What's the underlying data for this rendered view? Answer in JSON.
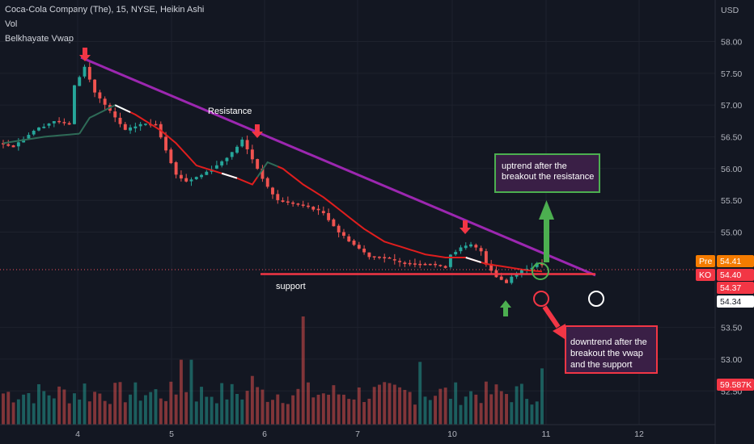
{
  "header": {
    "title": "Coca-Cola Company (The), 15, NYSE, Heikin Ashi",
    "indicator1": "Vol",
    "indicator2": "Belkhayate Vwap"
  },
  "axis": {
    "currency": "USD",
    "y_ticks": [
      "58.00",
      "57.50",
      "57.00",
      "56.50",
      "56.00",
      "55.50",
      "55.00",
      "53.50",
      "53.00",
      "52.50"
    ],
    "x_ticks": [
      "4",
      "5",
      "6",
      "7",
      "10",
      "11",
      "12"
    ]
  },
  "badges": {
    "pre_label": "Pre",
    "pre_value": "54.41",
    "ko_label": "KO",
    "ko_value": "54.40",
    "red_value": "54.37",
    "white_value": "54.34",
    "volume_value": "59.587K"
  },
  "annotations": {
    "resistance": "Resistance",
    "support": "support",
    "uptrend_line1": "uptrend after the",
    "uptrend_line2": "breakout the resistance",
    "downtrend_line1": "downtrend after the",
    "downtrend_line2": "breakout the vwap",
    "downtrend_line3": "and the support"
  },
  "colors": {
    "background": "#131722",
    "candle_up": "#26a69a",
    "candle_down": "#ef5350",
    "vwap": "#e01e1e",
    "resistance_line": "#9c27b0",
    "support_line": "#f23645",
    "arrow_red": "#f23645",
    "arrow_green": "#4caf50"
  },
  "chart_data": {
    "type": "candlestick",
    "x_ticks": [
      "4",
      "5",
      "6",
      "7",
      "10",
      "11",
      "12"
    ],
    "ylim": [
      52.3,
      58.4
    ],
    "price_anchors": [
      [
        0,
        56.4
      ],
      [
        3,
        56.35
      ],
      [
        7,
        56.6
      ],
      [
        11,
        56.75
      ],
      [
        14,
        56.7
      ],
      [
        15,
        57.3
      ],
      [
        17,
        57.6
      ],
      [
        19,
        57.2
      ],
      [
        22,
        56.9
      ],
      [
        25,
        56.6
      ],
      [
        28,
        56.7
      ],
      [
        31,
        56.7
      ],
      [
        33,
        56.3
      ],
      [
        35,
        55.9
      ],
      [
        37,
        55.8
      ],
      [
        40,
        55.9
      ],
      [
        43,
        56.05
      ],
      [
        46,
        56.25
      ],
      [
        48,
        56.45
      ],
      [
        49,
        56.3
      ],
      [
        51,
        56.0
      ],
      [
        53,
        55.7
      ],
      [
        55,
        55.5
      ],
      [
        58,
        55.45
      ],
      [
        61,
        55.4
      ],
      [
        64,
        55.3
      ],
      [
        67,
        55.0
      ],
      [
        70,
        54.8
      ],
      [
        73,
        54.62
      ],
      [
        76,
        54.6
      ],
      [
        79,
        54.52
      ],
      [
        82,
        54.5
      ],
      [
        85,
        54.5
      ],
      [
        88,
        54.45
      ],
      [
        89,
        54.65
      ],
      [
        91,
        54.75
      ],
      [
        93,
        54.8
      ],
      [
        95,
        54.7
      ],
      [
        96,
        54.5
      ],
      [
        98,
        54.3
      ],
      [
        100,
        54.2
      ],
      [
        101,
        54.3
      ],
      [
        103,
        54.4
      ],
      [
        105,
        54.45
      ],
      [
        106,
        54.5
      ]
    ],
    "vwap": [
      [
        0,
        56.4
      ],
      [
        8,
        56.5
      ],
      [
        15,
        56.55
      ],
      [
        17,
        56.8
      ],
      [
        22,
        57.0
      ],
      [
        26,
        56.85
      ],
      [
        31,
        56.6
      ],
      [
        34,
        56.4
      ],
      [
        38,
        56.05
      ],
      [
        42,
        55.95
      ],
      [
        46,
        55.85
      ],
      [
        49,
        55.75
      ],
      [
        52,
        56.1
      ],
      [
        55,
        56.0
      ],
      [
        59,
        55.75
      ],
      [
        63,
        55.55
      ],
      [
        67,
        55.3
      ],
      [
        71,
        55.05
      ],
      [
        75,
        54.85
      ],
      [
        79,
        54.75
      ],
      [
        83,
        54.65
      ],
      [
        87,
        54.6
      ],
      [
        91,
        54.6
      ],
      [
        95,
        54.5
      ],
      [
        99,
        54.45
      ],
      [
        103,
        54.4
      ],
      [
        106,
        54.38
      ]
    ],
    "resistance_line": [
      [
        57.75,
        0.17
      ],
      [
        54.16,
        0.79
      ]
    ],
    "support_level": 54.34,
    "volume_max": 59.587,
    "volume_unit": "K"
  }
}
